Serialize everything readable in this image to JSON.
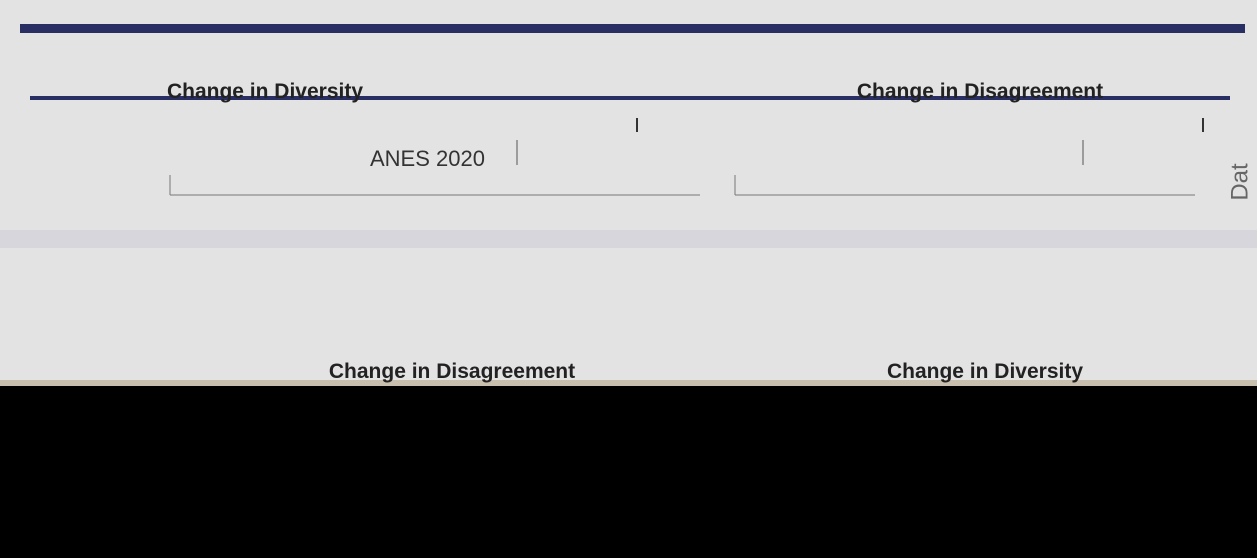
{
  "header": {
    "top_panels": [
      "Change in Diversity",
      "Change in Disagreement"
    ],
    "dataset_label": "ANES 2020",
    "side_label": "Dat",
    "bottom_panels": [
      "Change in Disagreement",
      "Change in Diversity"
    ]
  }
}
